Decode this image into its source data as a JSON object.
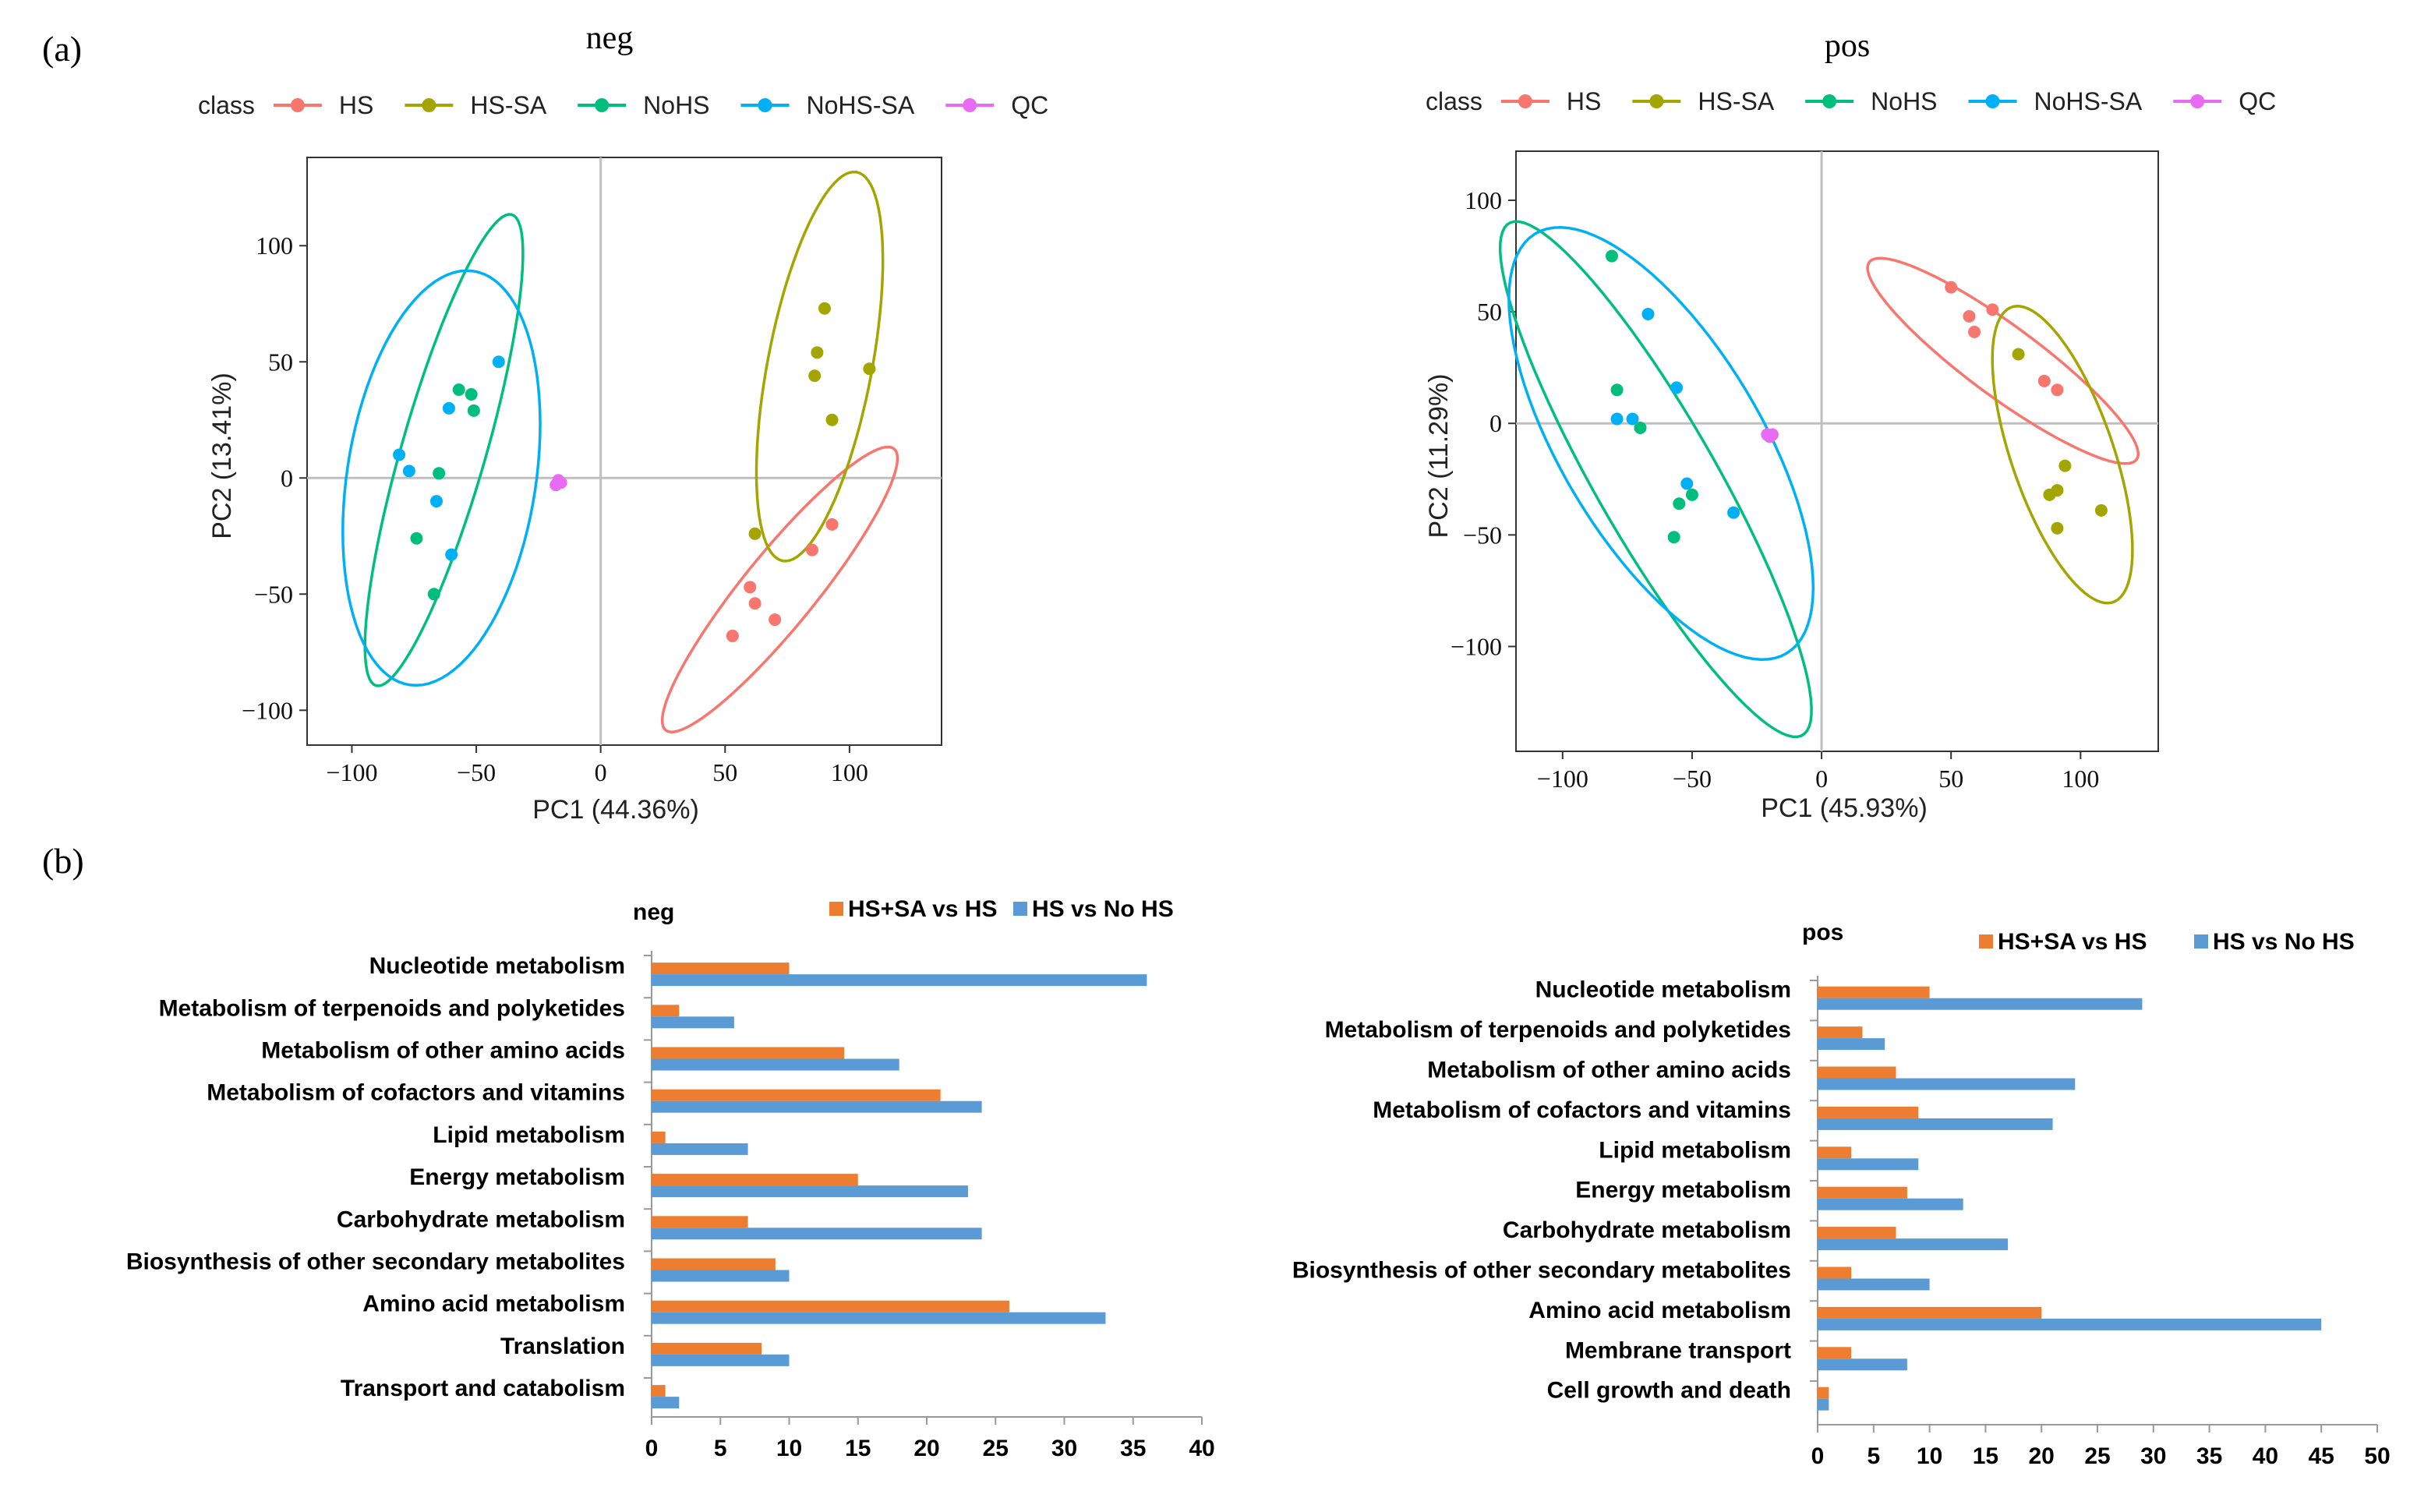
{
  "panel_labels": {
    "a": "(a)",
    "b": "(b)"
  },
  "colors": {
    "HS": "#F8766D",
    "HS-SA": "#A3A500",
    "NoHS": "#00BF7D",
    "NoHS-SA": "#00B0F6",
    "QC": "#E76BF3",
    "bar_orange": "#ED7D31",
    "bar_blue": "#5B9BD5"
  },
  "chart_data": [
    {
      "type": "scatter",
      "id": "pca_neg",
      "title": "neg",
      "legend_title": "class",
      "classes": [
        "HS",
        "HS-SA",
        "NoHS",
        "NoHS-SA",
        "QC"
      ],
      "xlabel": "PC1 (44.36%)",
      "ylabel": "PC2 (13.41%)",
      "xlim": [
        -118,
        137
      ],
      "ylim": [
        -115,
        138
      ],
      "xticks": [
        -100,
        -50,
        0,
        50,
        100
      ],
      "xtick_labels": [
        "−100",
        "−50",
        "0",
        "50",
        "100"
      ],
      "yticks": [
        -100,
        -50,
        0,
        50,
        100
      ],
      "ytick_labels": [
        "−100",
        "−50",
        "0",
        "50",
        "100"
      ],
      "points": [
        {
          "class": "HS",
          "x": 53,
          "y": -68
        },
        {
          "class": "HS",
          "x": 60,
          "y": -47
        },
        {
          "class": "HS",
          "x": 62,
          "y": -54
        },
        {
          "class": "HS",
          "x": 70,
          "y": -61
        },
        {
          "class": "HS",
          "x": 85,
          "y": -31
        },
        {
          "class": "HS",
          "x": 93,
          "y": -20
        },
        {
          "class": "HS-SA",
          "x": 62,
          "y": -24
        },
        {
          "class": "HS-SA",
          "x": 86,
          "y": 44
        },
        {
          "class": "HS-SA",
          "x": 87,
          "y": 54
        },
        {
          "class": "HS-SA",
          "x": 90,
          "y": 73
        },
        {
          "class": "HS-SA",
          "x": 93,
          "y": 25
        },
        {
          "class": "HS-SA",
          "x": 108,
          "y": 47
        },
        {
          "class": "NoHS",
          "x": -74,
          "y": -26
        },
        {
          "class": "NoHS",
          "x": -67,
          "y": -50
        },
        {
          "class": "NoHS",
          "x": -65,
          "y": 2
        },
        {
          "class": "NoHS",
          "x": -57,
          "y": 38
        },
        {
          "class": "NoHS",
          "x": -52,
          "y": 36
        },
        {
          "class": "NoHS",
          "x": -51,
          "y": 29
        },
        {
          "class": "NoHS-SA",
          "x": -81,
          "y": 10
        },
        {
          "class": "NoHS-SA",
          "x": -77,
          "y": 3
        },
        {
          "class": "NoHS-SA",
          "x": -66,
          "y": -10
        },
        {
          "class": "NoHS-SA",
          "x": -61,
          "y": 30
        },
        {
          "class": "NoHS-SA",
          "x": -60,
          "y": -33
        },
        {
          "class": "NoHS-SA",
          "x": -41,
          "y": 50
        },
        {
          "class": "QC",
          "x": -18,
          "y": -3
        },
        {
          "class": "QC",
          "x": -17,
          "y": -1
        },
        {
          "class": "QC",
          "x": -16,
          "y": -2
        }
      ],
      "ellipses": [
        {
          "class": "HS",
          "cx": 72,
          "cy": -48,
          "rx": 76,
          "ry": 15,
          "angle_deg": 53
        },
        {
          "class": "HS-SA",
          "cx": 88,
          "cy": 48,
          "rx": 85,
          "ry": 21,
          "angle_deg": 80
        },
        {
          "class": "NoHS",
          "cx": -63,
          "cy": 12,
          "rx": 105,
          "ry": 17,
          "angle_deg": 75
        },
        {
          "class": "NoHS-SA",
          "cx": -64,
          "cy": 0,
          "rx": 90,
          "ry": 38,
          "angle_deg": 82
        }
      ]
    },
    {
      "type": "scatter",
      "id": "pca_pos",
      "title": "pos",
      "legend_title": "class",
      "classes": [
        "HS",
        "HS-SA",
        "NoHS",
        "NoHS-SA",
        "QC"
      ],
      "xlabel": "PC1 (45.93%)",
      "ylabel": "PC2 (11.29%)",
      "xlim": [
        -118,
        130
      ],
      "ylim": [
        -147,
        122
      ],
      "xticks": [
        -100,
        -50,
        0,
        50,
        100
      ],
      "xtick_labels": [
        "−100",
        "−50",
        "0",
        "50",
        "100"
      ],
      "yticks": [
        -100,
        -50,
        0,
        50,
        100
      ],
      "ytick_labels": [
        "−100",
        "−50",
        "0",
        "50",
        "100"
      ],
      "points": [
        {
          "class": "HS",
          "x": 50,
          "y": 61
        },
        {
          "class": "HS",
          "x": 57,
          "y": 48
        },
        {
          "class": "HS",
          "x": 59,
          "y": 41
        },
        {
          "class": "HS",
          "x": 66,
          "y": 51
        },
        {
          "class": "HS",
          "x": 86,
          "y": 19
        },
        {
          "class": "HS",
          "x": 91,
          "y": 15
        },
        {
          "class": "HS-SA",
          "x": 76,
          "y": 31
        },
        {
          "class": "HS-SA",
          "x": 88,
          "y": -32
        },
        {
          "class": "HS-SA",
          "x": 91,
          "y": -30
        },
        {
          "class": "HS-SA",
          "x": 91,
          "y": -47
        },
        {
          "class": "HS-SA",
          "x": 94,
          "y": -19
        },
        {
          "class": "HS-SA",
          "x": 108,
          "y": -39
        },
        {
          "class": "NoHS",
          "x": -81,
          "y": 75
        },
        {
          "class": "NoHS",
          "x": -79,
          "y": 15
        },
        {
          "class": "NoHS",
          "x": -70,
          "y": -2
        },
        {
          "class": "NoHS",
          "x": -57,
          "y": -51
        },
        {
          "class": "NoHS",
          "x": -55,
          "y": -36
        },
        {
          "class": "NoHS",
          "x": -50,
          "y": -32
        },
        {
          "class": "NoHS-SA",
          "x": -79,
          "y": 2
        },
        {
          "class": "NoHS-SA",
          "x": -73,
          "y": 2
        },
        {
          "class": "NoHS-SA",
          "x": -67,
          "y": 49
        },
        {
          "class": "NoHS-SA",
          "x": -56,
          "y": 16
        },
        {
          "class": "NoHS-SA",
          "x": -52,
          "y": -27
        },
        {
          "class": "NoHS-SA",
          "x": -34,
          "y": -40
        },
        {
          "class": "QC",
          "x": -21,
          "y": -5
        },
        {
          "class": "QC",
          "x": -20,
          "y": -6
        },
        {
          "class": "QC",
          "x": -19,
          "y": -5
        }
      ],
      "ellipses": [
        {
          "class": "HS",
          "cx": 70,
          "cy": 28,
          "rx": 68,
          "ry": 15,
          "angle_deg": -41
        },
        {
          "class": "HS-SA",
          "cx": 93,
          "cy": -14,
          "rx": 69,
          "ry": 20,
          "angle_deg": -74
        },
        {
          "class": "NoHS",
          "cx": -64,
          "cy": -25,
          "rx": 128,
          "ry": 24,
          "angle_deg": -64
        },
        {
          "class": "NoHS-SA",
          "cx": -62,
          "cy": -9,
          "rx": 106,
          "ry": 40,
          "angle_deg": -64
        }
      ]
    },
    {
      "type": "bar",
      "orientation": "horizontal",
      "id": "bar_neg",
      "title": "neg",
      "categories": [
        "Nucleotide metabolism",
        "Metabolism of terpenoids and polyketides",
        "Metabolism of other amino acids",
        "Metabolism of cofactors and vitamins",
        "Lipid metabolism",
        "Energy metabolism",
        "Carbohydrate metabolism",
        "Biosynthesis of other secondary metabolites",
        "Amino acid metabolism",
        "Translation",
        "Transport and catabolism"
      ],
      "series": [
        {
          "name": "HS+SA vs HS",
          "color": "#ED7D31",
          "values": [
            10,
            2,
            14,
            21,
            1,
            15,
            7,
            9,
            26,
            8,
            1
          ]
        },
        {
          "name": "HS vs No HS",
          "color": "#5B9BD5",
          "values": [
            36,
            6,
            18,
            24,
            7,
            23,
            24,
            10,
            33,
            10,
            2
          ]
        }
      ],
      "xlim": [
        0,
        40
      ],
      "xticks": [
        0,
        5,
        10,
        15,
        20,
        25,
        30,
        35,
        40
      ]
    },
    {
      "type": "bar",
      "orientation": "horizontal",
      "id": "bar_pos",
      "title": "pos",
      "categories": [
        "Nucleotide metabolism",
        "Metabolism of terpenoids and polyketides",
        "Metabolism of other amino acids",
        "Metabolism of cofactors and vitamins",
        "Lipid metabolism",
        "Energy metabolism",
        "Carbohydrate metabolism",
        "Biosynthesis of other secondary metabolites",
        "Amino acid metabolism",
        "Membrane transport",
        "Cell growth and death"
      ],
      "series": [
        {
          "name": "HS+SA vs HS",
          "color": "#ED7D31",
          "values": [
            10,
            4,
            7,
            9,
            3,
            8,
            7,
            3,
            20,
            3,
            1
          ]
        },
        {
          "name": "HS vs No HS",
          "color": "#5B9BD5",
          "values": [
            29,
            6,
            23,
            21,
            9,
            13,
            17,
            10,
            45,
            8,
            1
          ]
        }
      ],
      "xlim": [
        0,
        50
      ],
      "xticks": [
        0,
        5,
        10,
        15,
        20,
        25,
        30,
        35,
        40,
        45,
        50
      ]
    }
  ]
}
